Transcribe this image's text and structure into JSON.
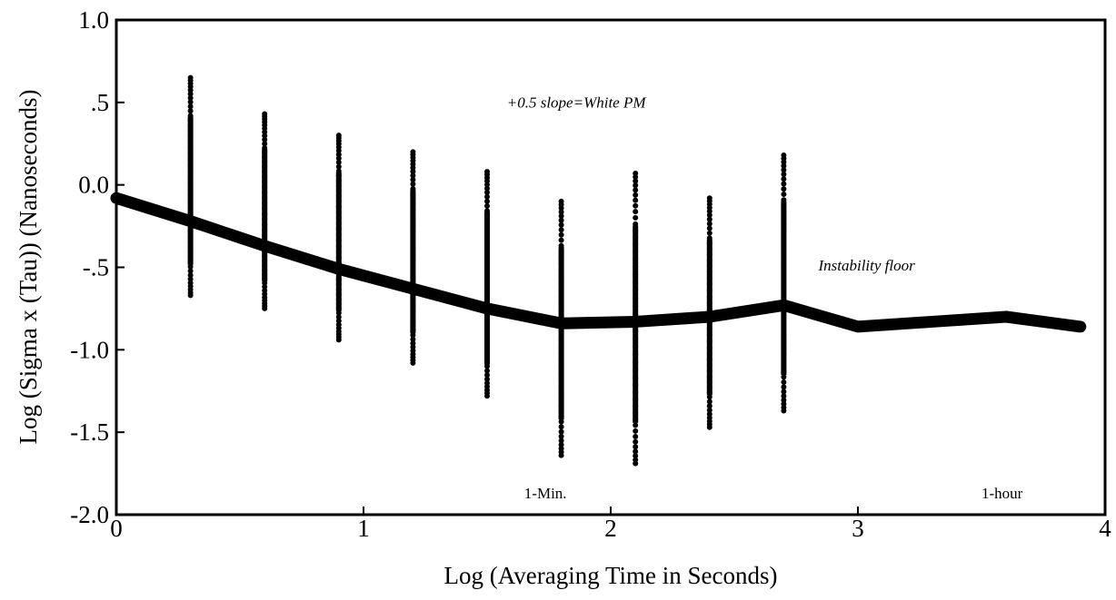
{
  "chart_data": {
    "type": "line",
    "title": "",
    "xlabel": "Log (Averaging Time in Seconds)",
    "ylabel": "Log (Sigma x (Tau)) (Nanoseconds)",
    "xlim": [
      0,
      4
    ],
    "ylim": [
      -2.0,
      1.0
    ],
    "x_tick_values": [
      0,
      1,
      2,
      3,
      4
    ],
    "x_tick_labels": [
      "0",
      "1",
      "2",
      "3",
      "4"
    ],
    "y_tick_values": [
      1.0,
      0.5,
      0.0,
      -0.5,
      -1.0,
      -1.5,
      -2.0
    ],
    "y_tick_labels": [
      "1.0",
      ".5",
      "0.0",
      "-.5",
      "-1.0",
      "-1.5",
      "-2.0"
    ],
    "grid": false,
    "series": [
      {
        "x": [
          0,
          0.3,
          0.6,
          0.9,
          1.2,
          1.5,
          1.8,
          2.1,
          2.4,
          2.7,
          3.0,
          3.3,
          3.6,
          3.9
        ],
        "y": [
          -0.08,
          -0.22,
          -0.37,
          -0.51,
          -0.63,
          -0.75,
          -0.84,
          -0.83,
          -0.8,
          -0.73,
          -0.86,
          -0.83,
          -0.8,
          -0.86
        ]
      }
    ],
    "scatter_columns": [
      {
        "x": 0.3,
        "y_min": -0.67,
        "y_max": 0.65
      },
      {
        "x": 0.6,
        "y_min": -0.75,
        "y_max": 0.43
      },
      {
        "x": 0.9,
        "y_min": -0.94,
        "y_max": 0.3
      },
      {
        "x": 1.2,
        "y_min": -1.08,
        "y_max": 0.2
      },
      {
        "x": 1.5,
        "y_min": -1.28,
        "y_max": 0.08
      },
      {
        "x": 1.8,
        "y_min": -1.64,
        "y_max": -0.1
      },
      {
        "x": 2.1,
        "y_min": -1.69,
        "y_max": 0.07
      },
      {
        "x": 2.4,
        "y_min": -1.47,
        "y_max": -0.08
      },
      {
        "x": 2.7,
        "y_min": -1.37,
        "y_max": 0.18
      }
    ],
    "annotations": [
      {
        "text": "+0.5 slope=White PM",
        "x": 1.58,
        "y": 0.47,
        "style": "italic"
      },
      {
        "text": "Instability floor",
        "x": 2.84,
        "y": -0.52,
        "style": "italic"
      },
      {
        "text": "1-Min.",
        "x": 1.65,
        "y": -1.9,
        "style": "plain"
      },
      {
        "text": "1-hour",
        "x": 3.5,
        "y": -1.9,
        "style": "plain"
      }
    ]
  }
}
